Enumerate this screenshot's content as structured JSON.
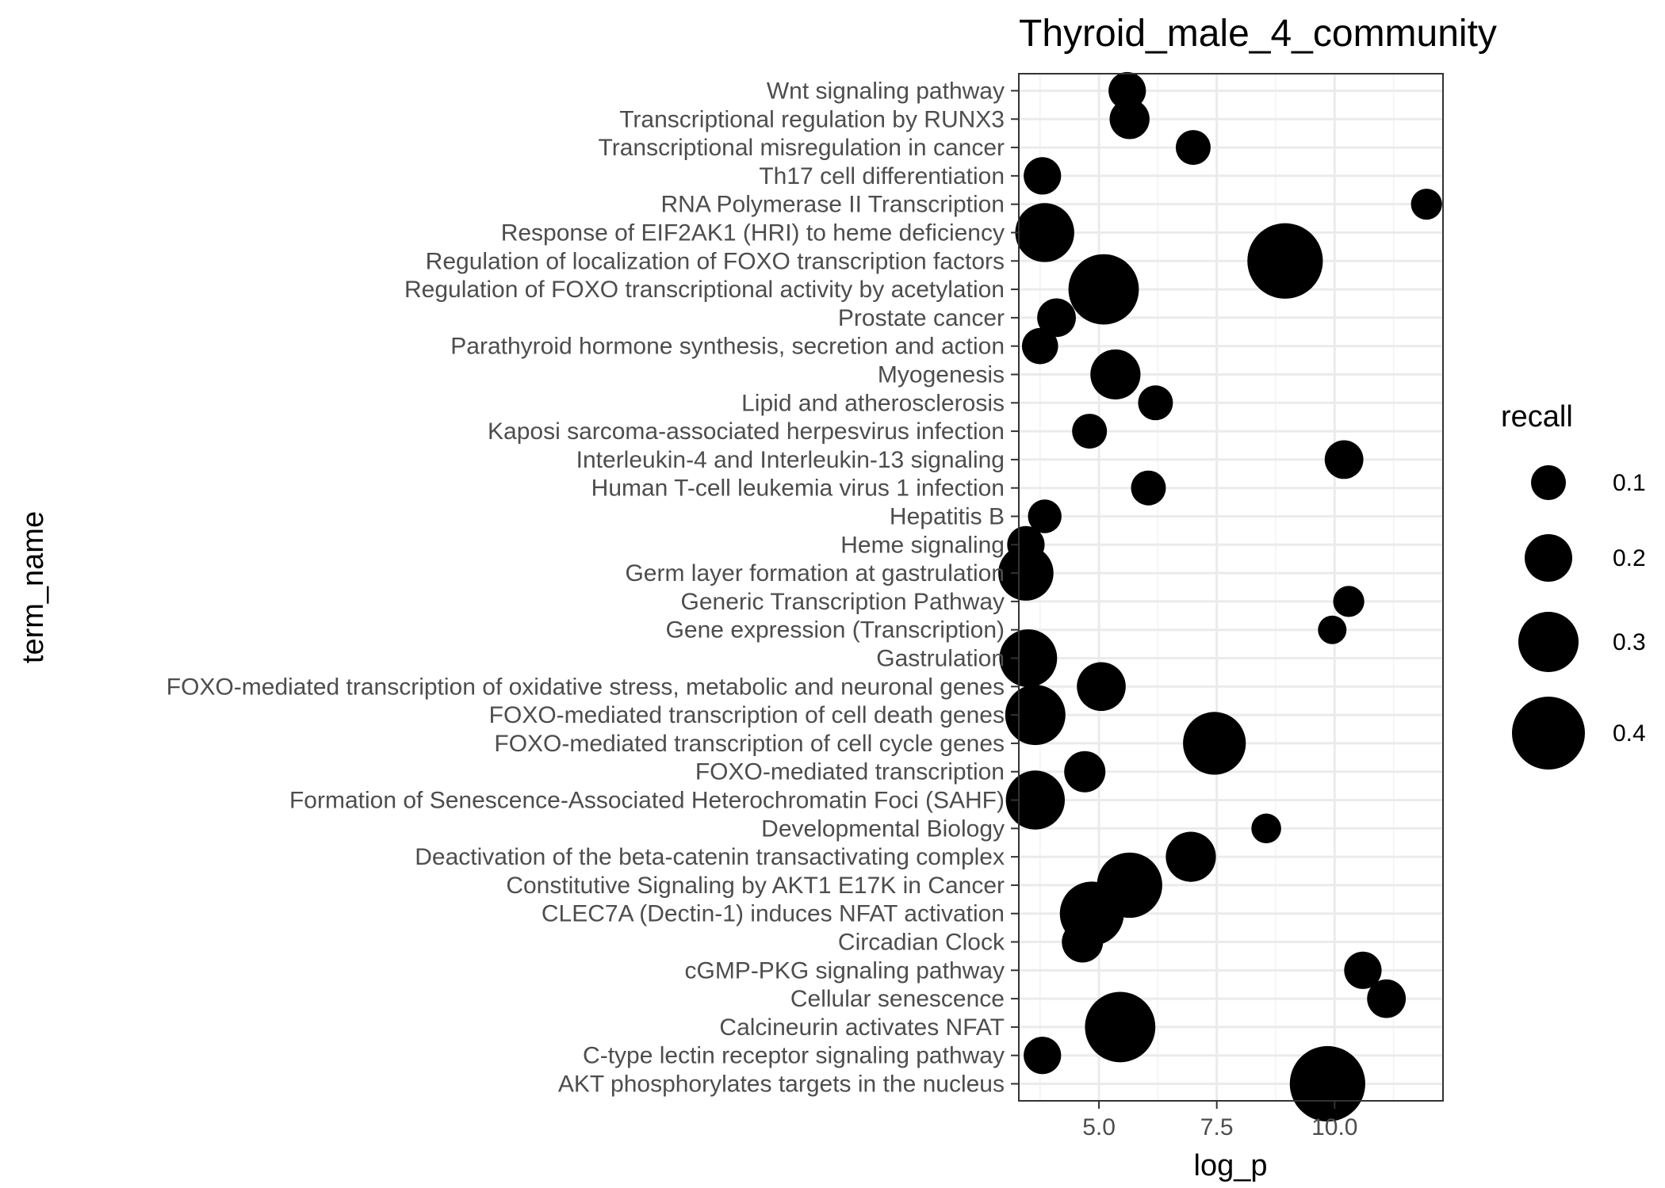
{
  "chart_data": {
    "type": "scatter",
    "title": "Thyroid_male_4_community",
    "xlabel": "log_p",
    "ylabel": "term_name",
    "xlim": [
      3.3,
      12.3
    ],
    "x_ticks": [
      5.0,
      7.5,
      10.0
    ],
    "x_tick_labels": [
      "5.0",
      "7.5",
      "10.0"
    ],
    "grid": true,
    "size_variable": "recall",
    "color": "#000000",
    "legend": {
      "title": "recall",
      "position": "right",
      "values": [
        0.1,
        0.2,
        0.3,
        0.4
      ],
      "labels": [
        "0.1",
        "0.2",
        "0.3",
        "0.4"
      ]
    },
    "categories": [
      "Wnt signaling pathway",
      "Transcriptional regulation by RUNX3",
      "Transcriptional misregulation in cancer",
      "Th17 cell differentiation",
      "RNA Polymerase II Transcription",
      "Response of EIF2AK1 (HRI) to heme deficiency",
      "Regulation of localization of FOXO transcription factors",
      "Regulation of FOXO transcriptional activity by acetylation",
      "Prostate cancer",
      "Parathyroid hormone synthesis, secretion and action",
      "Myogenesis",
      "Lipid and atherosclerosis",
      "Kaposi sarcoma-associated herpesvirus infection",
      "Interleukin-4 and Interleukin-13 signaling",
      "Human T-cell leukemia virus 1 infection",
      "Hepatitis B",
      "Heme signaling",
      "Germ layer formation at gastrulation",
      "Generic Transcription Pathway",
      "Gene expression (Transcription)",
      "Gastrulation",
      "FOXO-mediated transcription of oxidative stress, metabolic and neuronal genes",
      "FOXO-mediated transcription of cell death genes",
      "FOXO-mediated transcription of cell cycle genes",
      "FOXO-mediated transcription",
      "Formation of Senescence-Associated Heterochromatin Foci (SAHF)",
      "Developmental Biology",
      "Deactivation of the beta-catenin transactivating complex",
      "Constitutive Signaling by AKT1 E17K in Cancer",
      "CLEC7A (Dectin-1) induces NFAT activation",
      "Circadian Clock",
      "cGMP-PKG signaling pathway",
      "Cellular senescence",
      "Calcineurin activates NFAT",
      "C-type lectin receptor signaling pathway",
      "AKT phosphorylates targets in the nucleus"
    ],
    "points": [
      {
        "term": "Wnt signaling pathway",
        "x": 5.6,
        "recall": 0.12
      },
      {
        "term": "Transcriptional regulation by RUNX3",
        "x": 5.65,
        "recall": 0.14
      },
      {
        "term": "Transcriptional misregulation in cancer",
        "x": 7.0,
        "recall": 0.1
      },
      {
        "term": "Th17 cell differentiation",
        "x": 3.8,
        "recall": 0.12
      },
      {
        "term": "RNA Polymerase II Transcription",
        "x": 11.95,
        "recall": 0.07
      },
      {
        "term": "Response of EIF2AK1 (HRI) to heme deficiency",
        "x": 3.85,
        "recall": 0.29
      },
      {
        "term": "Regulation of localization of FOXO transcription factors",
        "x": 8.95,
        "recall": 0.42
      },
      {
        "term": "Regulation of FOXO transcriptional activity by acetylation",
        "x": 5.1,
        "recall": 0.38
      },
      {
        "term": "Prostate cancer",
        "x": 4.1,
        "recall": 0.13
      },
      {
        "term": "Parathyroid hormone synthesis, secretion and action",
        "x": 3.75,
        "recall": 0.11
      },
      {
        "term": "Myogenesis",
        "x": 5.35,
        "recall": 0.22
      },
      {
        "term": "Lipid and atherosclerosis",
        "x": 6.2,
        "recall": 0.1
      },
      {
        "term": "Kaposi sarcoma-associated herpesvirus infection",
        "x": 4.8,
        "recall": 0.1
      },
      {
        "term": "Interleukin-4 and Interleukin-13 signaling",
        "x": 10.2,
        "recall": 0.13
      },
      {
        "term": "Human T-cell leukemia virus 1 infection",
        "x": 6.05,
        "recall": 0.1
      },
      {
        "term": "Hepatitis B",
        "x": 3.85,
        "recall": 0.09
      },
      {
        "term": "Heme signaling",
        "x": 3.45,
        "recall": 0.12
      },
      {
        "term": "Germ layer formation at gastrulation",
        "x": 3.45,
        "recall": 0.26
      },
      {
        "term": "Generic Transcription Pathway",
        "x": 10.3,
        "recall": 0.07
      },
      {
        "term": "Gene expression (Transcription)",
        "x": 9.95,
        "recall": 0.05
      },
      {
        "term": "Gastrulation",
        "x": 3.5,
        "recall": 0.28
      },
      {
        "term": "FOXO-mediated transcription of oxidative stress, metabolic and neuronal genes",
        "x": 5.05,
        "recall": 0.21
      },
      {
        "term": "FOXO-mediated transcription of cell death genes",
        "x": 3.65,
        "recall": 0.3
      },
      {
        "term": "FOXO-mediated transcription of cell cycle genes",
        "x": 7.45,
        "recall": 0.32
      },
      {
        "term": "FOXO-mediated transcription",
        "x": 4.7,
        "recall": 0.15
      },
      {
        "term": "Formation of Senescence-Associated Heterochromatin Foci (SAHF)",
        "x": 3.65,
        "recall": 0.29
      },
      {
        "term": "Developmental Biology",
        "x": 8.55,
        "recall": 0.06
      },
      {
        "term": "Deactivation of the beta-catenin transactivating complex",
        "x": 6.95,
        "recall": 0.22
      },
      {
        "term": "Constitutive Signaling by AKT1 E17K in Cancer",
        "x": 5.65,
        "recall": 0.34
      },
      {
        "term": "CLEC7A (Dectin-1) induces NFAT activation",
        "x": 4.85,
        "recall": 0.33
      },
      {
        "term": "Circadian Clock",
        "x": 4.65,
        "recall": 0.15
      },
      {
        "term": "cGMP-PKG signaling pathway",
        "x": 10.6,
        "recall": 0.12
      },
      {
        "term": "Cellular senescence",
        "x": 11.1,
        "recall": 0.13
      },
      {
        "term": "Calcineurin activates NFAT",
        "x": 5.45,
        "recall": 0.38
      },
      {
        "term": "C-type lectin receptor signaling pathway",
        "x": 3.8,
        "recall": 0.12
      },
      {
        "term": "AKT phosphorylates targets in the nucleus",
        "x": 9.85,
        "recall": 0.42
      }
    ]
  }
}
